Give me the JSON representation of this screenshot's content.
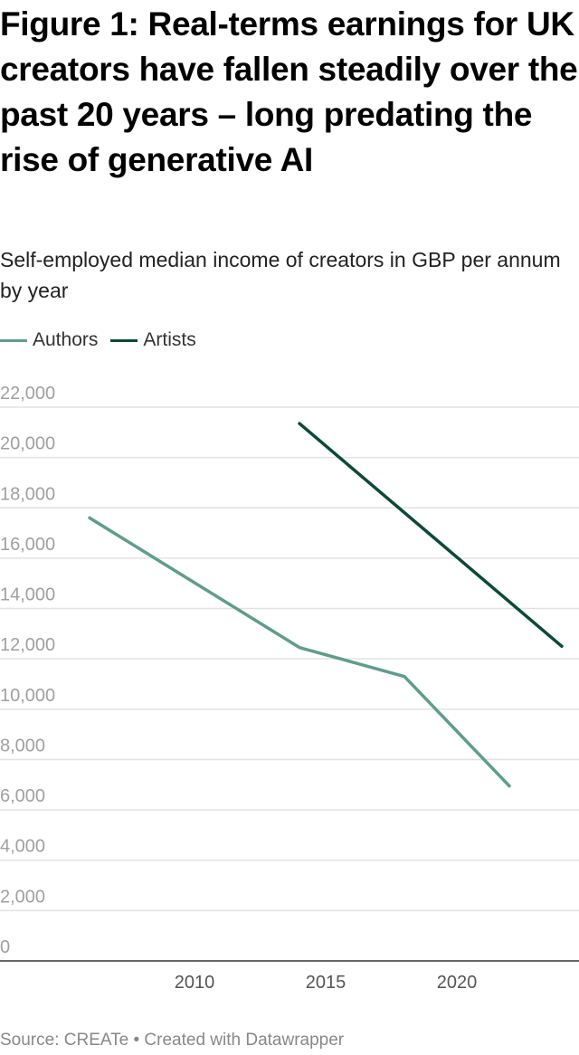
{
  "chart_data": {
    "type": "line",
    "title": "Figure 1: Real-terms earnings for UK creators have fallen steadily over the past 20 years – long predating the rise of generative AI",
    "subtitle": "Self-employed median income of creators in GBP per annum by year",
    "xlabel": "",
    "ylabel": "",
    "ylim": [
      0,
      22000
    ],
    "xlim": [
      2005,
      2024
    ],
    "yticks": [
      0,
      2000,
      4000,
      6000,
      8000,
      10000,
      12000,
      14000,
      16000,
      18000,
      20000,
      22000
    ],
    "ytick_labels": [
      "0",
      "2,000",
      "4,000",
      "6,000",
      "8,000",
      "10,000",
      "12,000",
      "14,000",
      "16,000",
      "18,000",
      "20,000",
      "22,000"
    ],
    "xticks": [
      2010,
      2015,
      2020
    ],
    "xtick_labels": [
      "2010",
      "2015",
      "2020"
    ],
    "grid": true,
    "legend_position": "top-left",
    "series": [
      {
        "name": "Authors",
        "color": "#5f9e86",
        "x": [
          2006,
          2014,
          2018,
          2022
        ],
        "values": [
          17600,
          12450,
          11300,
          6950
        ]
      },
      {
        "name": "Artists",
        "color": "#0b4a36",
        "x": [
          2014,
          2024
        ],
        "values": [
          21350,
          12500
        ]
      }
    ]
  },
  "footer": "Source: CREATe • Created with Datawrapper"
}
